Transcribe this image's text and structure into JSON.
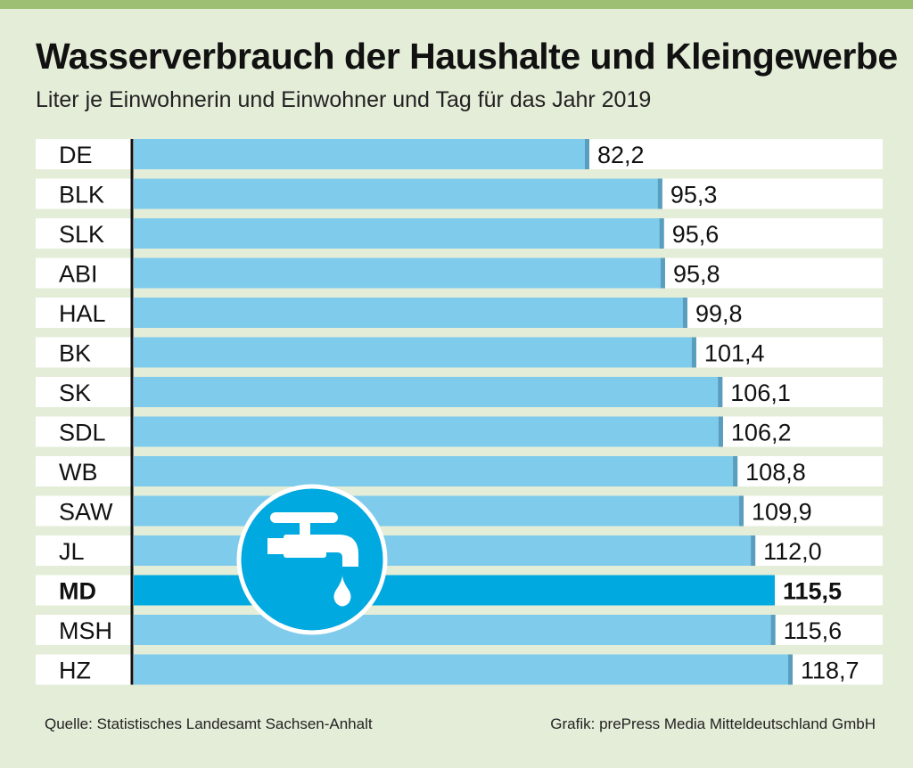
{
  "title": "Wasserverbrauch der Haushalte und Kleingewerbe",
  "subtitle": "Liter je Einwohnerin und Einwohner und Tag für das Jahr 2019",
  "source": "Quelle: Statistisches Landesamt Sachsen-Anhalt",
  "credit": "Grafik: prePress Media Mitteldeutschland GmbH",
  "icon": "water-tap-icon",
  "colors": {
    "background": "#e4edd8",
    "top_rule": "#9cbf73",
    "bar": "#7fcbec",
    "bar_shadow": "#5b9dbd",
    "highlight_bar": "#00a9e0",
    "row": "#ffffff",
    "icon_circle": "#00a9e0"
  },
  "chart_data": {
    "type": "bar",
    "orientation": "horizontal",
    "title": "Wasserverbrauch der Haushalte und Kleingewerbe",
    "subtitle": "Liter je Einwohnerin und Einwohner und Tag für das Jahr 2019",
    "xlabel": "",
    "ylabel": "",
    "xlim": [
      0,
      120
    ],
    "grid": false,
    "legend": "none",
    "highlight": "MD",
    "categories": [
      "DE",
      "BLK",
      "SLK",
      "ABI",
      "HAL",
      "BK",
      "SK",
      "SDL",
      "WB",
      "SAW",
      "JL",
      "MD",
      "MSH",
      "HZ"
    ],
    "values": [
      82.2,
      95.3,
      95.6,
      95.8,
      99.8,
      101.4,
      106.1,
      106.2,
      108.8,
      109.9,
      112.0,
      115.5,
      115.6,
      118.7
    ],
    "value_labels": [
      "82,2",
      "95,3",
      "95,6",
      "95,8",
      "99,8",
      "101,4",
      "106,1",
      "106,2",
      "108,8",
      "109,9",
      "112,0",
      "115,5",
      "115,6",
      "118,7"
    ]
  }
}
